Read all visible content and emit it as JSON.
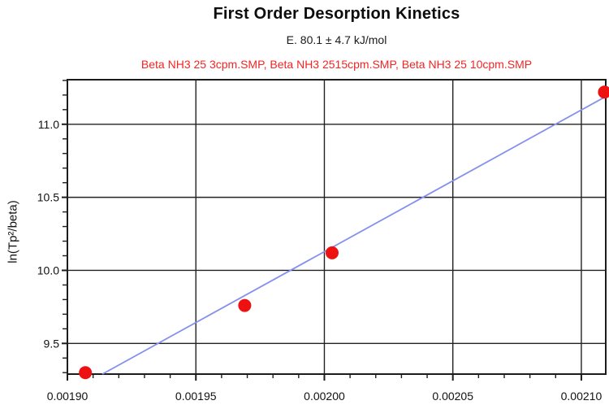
{
  "header": {
    "title": "First Order Desorption Kinetics",
    "subtitle": "E. 80.1 ± 4.7 kJ/mol",
    "datasets_label": "Beta NH3 25 3cpm.SMP, Beta NH3 2515cpm.SMP, Beta NH3 25 10cpm.SMP"
  },
  "chart_data": {
    "type": "scatter",
    "title": "First Order Desorption Kinetics",
    "subtitle": "E. 80.1 ± 4.7 kJ/mol",
    "annotation": "Beta NH3 25 3cpm.SMP, Beta NH3 2515cpm.SMP, Beta NH3 25 10cpm.SMP",
    "xlabel": "",
    "ylabel": "ln(Tp²/beta)",
    "xlim": [
      0.0019,
      0.0021095
    ],
    "ylim": [
      9.29,
      11.305
    ],
    "grid": true,
    "x_ticks": {
      "values": [
        0.0019,
        0.00195,
        0.002,
        0.00205,
        0.0021
      ],
      "labels": [
        "0.00190",
        "0.00195",
        "0.00200",
        "0.00205",
        "0.00210"
      ]
    },
    "y_ticks": {
      "values": [
        9.5,
        10.0,
        10.5,
        11.0
      ],
      "labels": [
        "9.5",
        "10.0",
        "10.5",
        "11.0"
      ]
    },
    "x_minor_step": 1e-05,
    "y_minor_step": 0.1,
    "points": [
      {
        "x": 0.001907,
        "y": 9.3
      },
      {
        "x": 0.001969,
        "y": 9.76
      },
      {
        "x": 0.002003,
        "y": 10.12
      },
      {
        "x": 0.002109,
        "y": 11.22
      }
    ],
    "trendline": {
      "x1": 0.0019136,
      "y1": 9.29,
      "x2": 0.0021095,
      "y2": 11.19
    },
    "fit_energy_kj_mol": "80.1 ± 4.7",
    "colors": {
      "point": "#ee1111",
      "trend": "#8490ec",
      "grid": "#222222",
      "frame": "#1c1c1c",
      "tick_text": "#111111",
      "datasets_text": "#f02626"
    }
  }
}
